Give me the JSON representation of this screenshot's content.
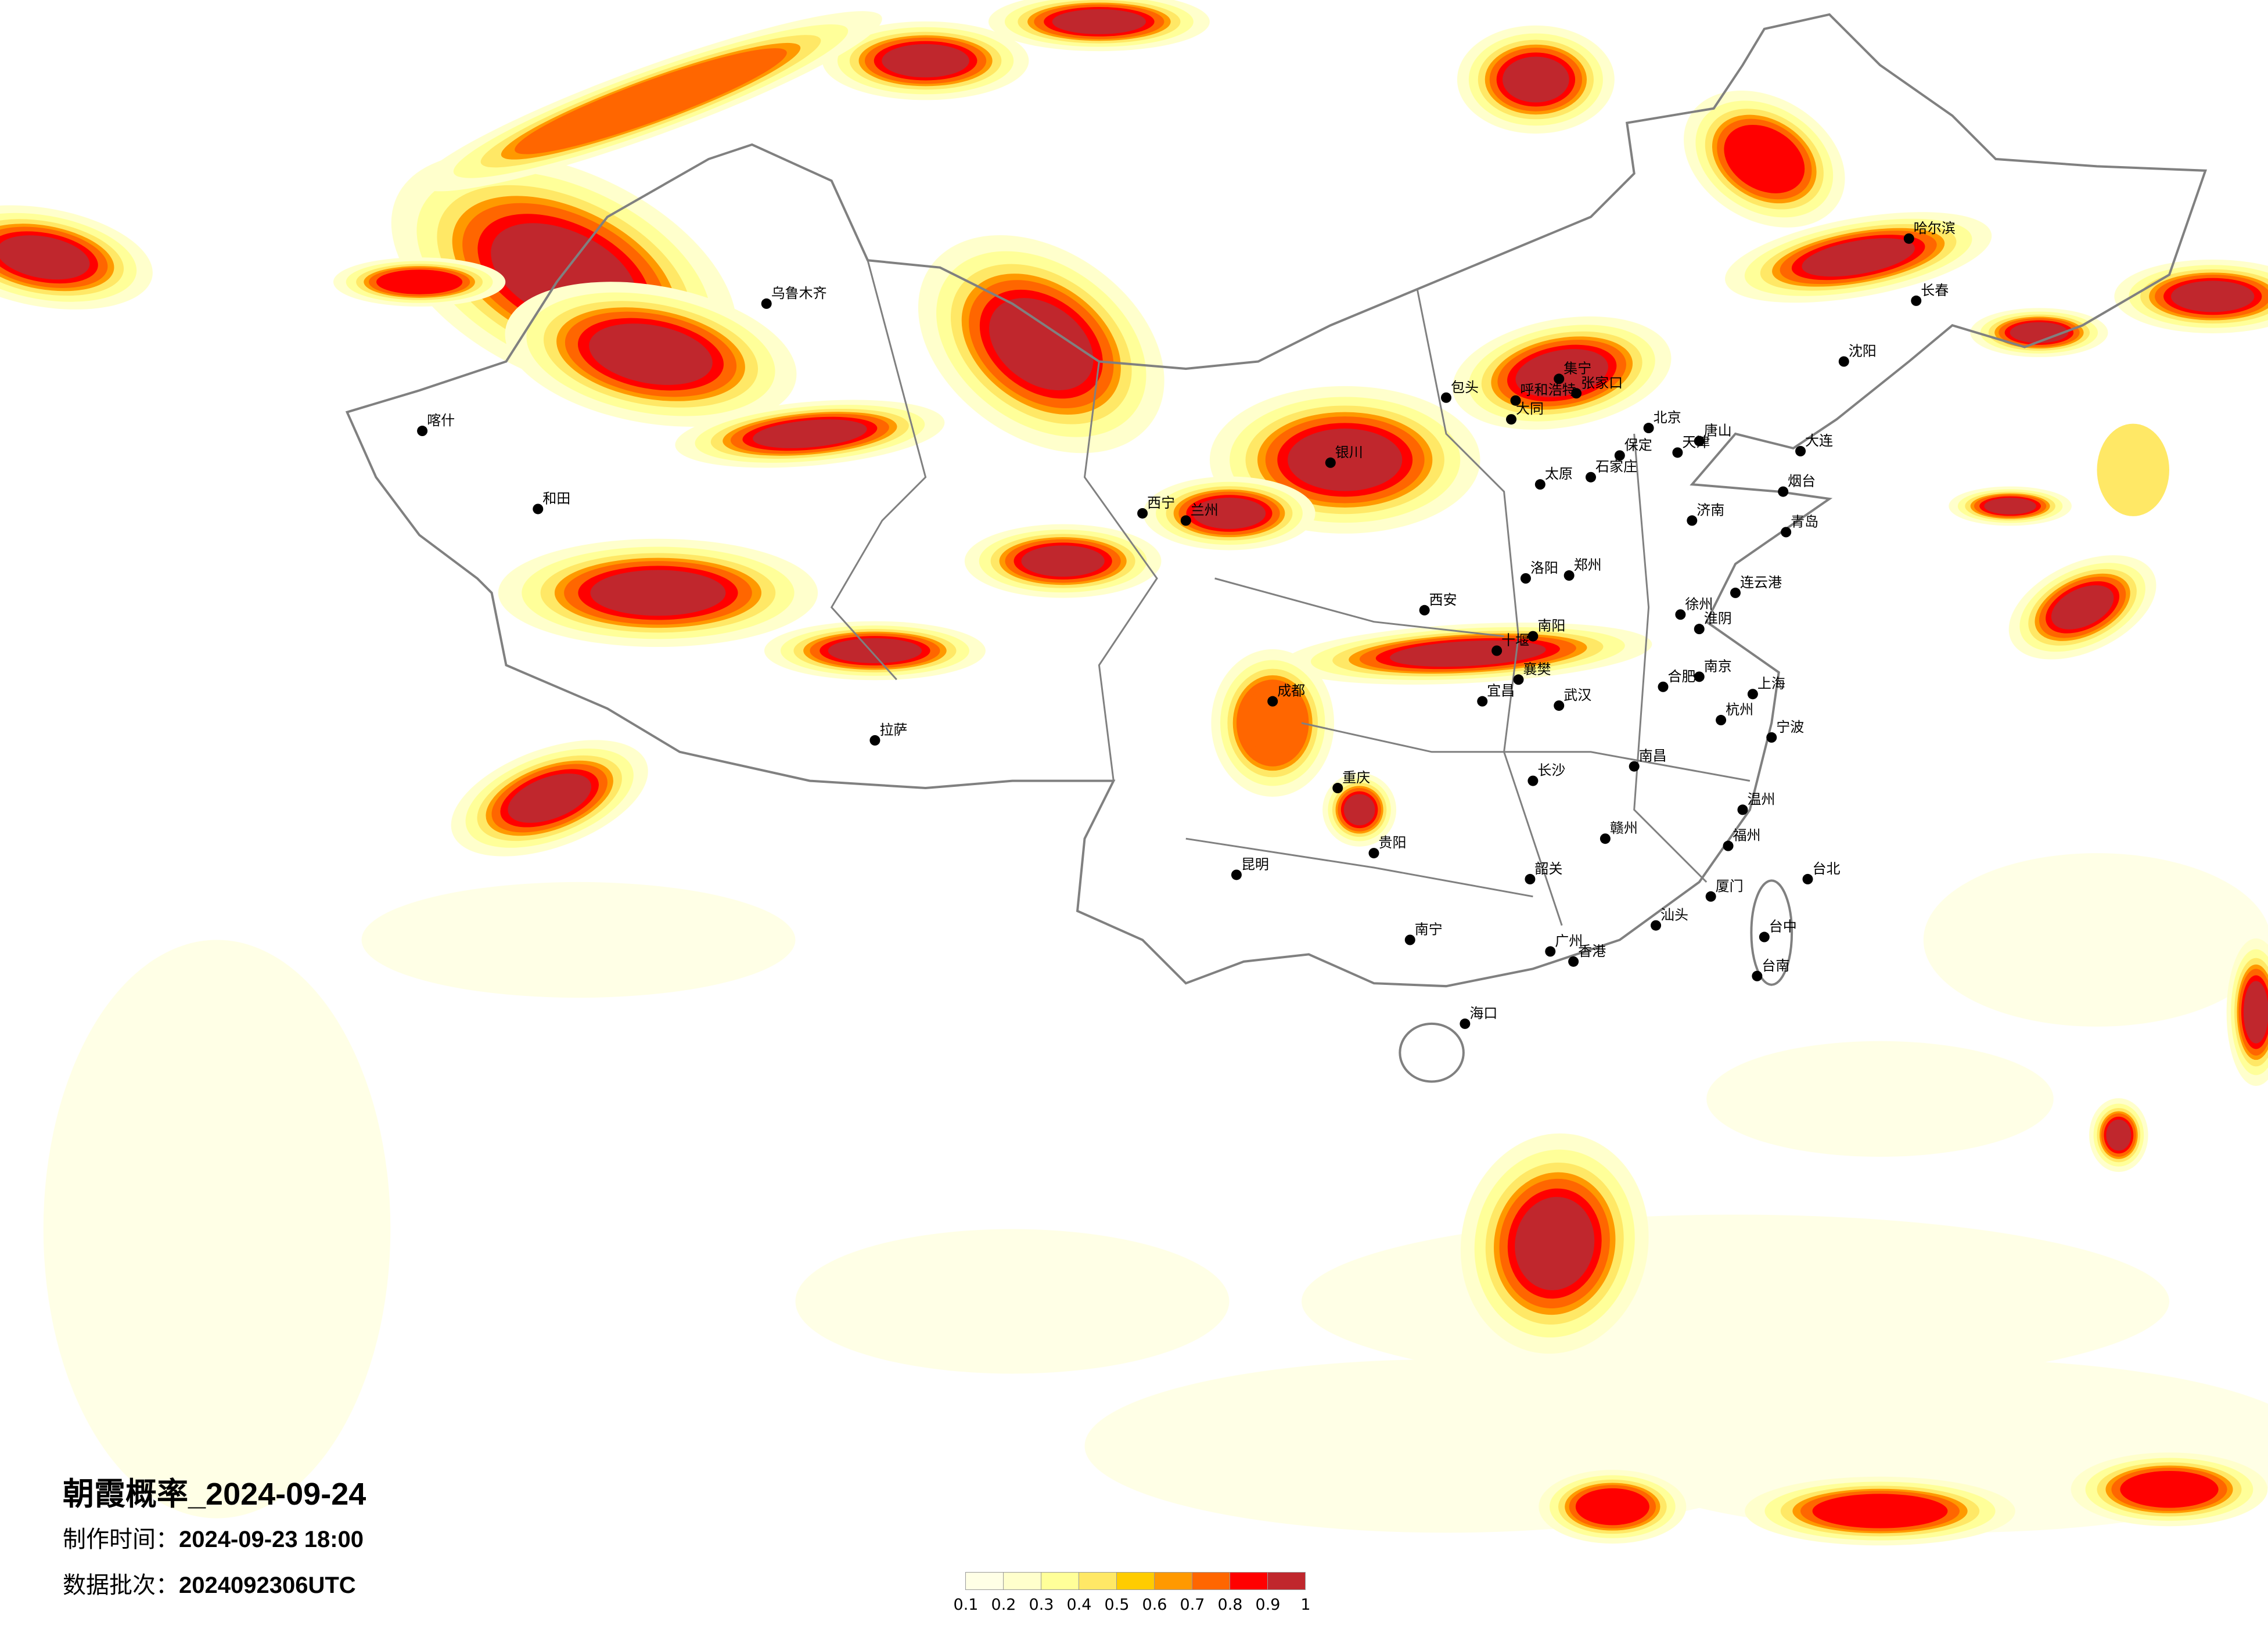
{
  "title": "朝霞概率_2024-09-24",
  "production_time": {
    "label": "制作时间：",
    "value": "2024-09-23 18:00"
  },
  "data_batch": {
    "label": "数据批次：",
    "value": "2024092306UTC"
  },
  "legend": {
    "labels": [
      "0.1",
      "0.2",
      "0.3",
      "0.4",
      "0.5",
      "0.6",
      "0.7",
      "0.8",
      "0.9",
      "1"
    ],
    "colors": [
      "#FFFFE6",
      "#FFFFCC",
      "#FFFF99",
      "#FFE866",
      "#FFCC00",
      "#FF9900",
      "#FF6600",
      "#FF0000",
      "#C0272D"
    ]
  },
  "map": {
    "border_color": "#808080",
    "city_dot_color": "#000000",
    "cities": [
      "北京",
      "天津",
      "石家庄",
      "太原",
      "呼和浩特",
      "济南",
      "青岛",
      "郑州",
      "西安",
      "南京",
      "合肥",
      "上海",
      "杭州",
      "武汉",
      "长沙",
      "南昌",
      "福州",
      "厦门",
      "广州",
      "香港",
      "重庆",
      "成都",
      "贵阳",
      "昆明",
      "南宁",
      "海口",
      "兰州",
      "西宁",
      "银川",
      "拉萨",
      "乌鲁木齐",
      "喀什",
      "和田",
      "哈尔滨",
      "长春",
      "沈阳",
      "大连",
      "台北",
      "台中",
      "台南",
      "包头",
      "大同",
      "张家口",
      "集宁",
      "洛阳",
      "南阳",
      "十堰",
      "襄樊",
      "宜昌",
      "赣州",
      "韶关",
      "汕头",
      "温州",
      "宁波",
      "烟台",
      "唐山",
      "保定",
      "徐州",
      "连云港",
      "淮阴"
    ]
  }
}
